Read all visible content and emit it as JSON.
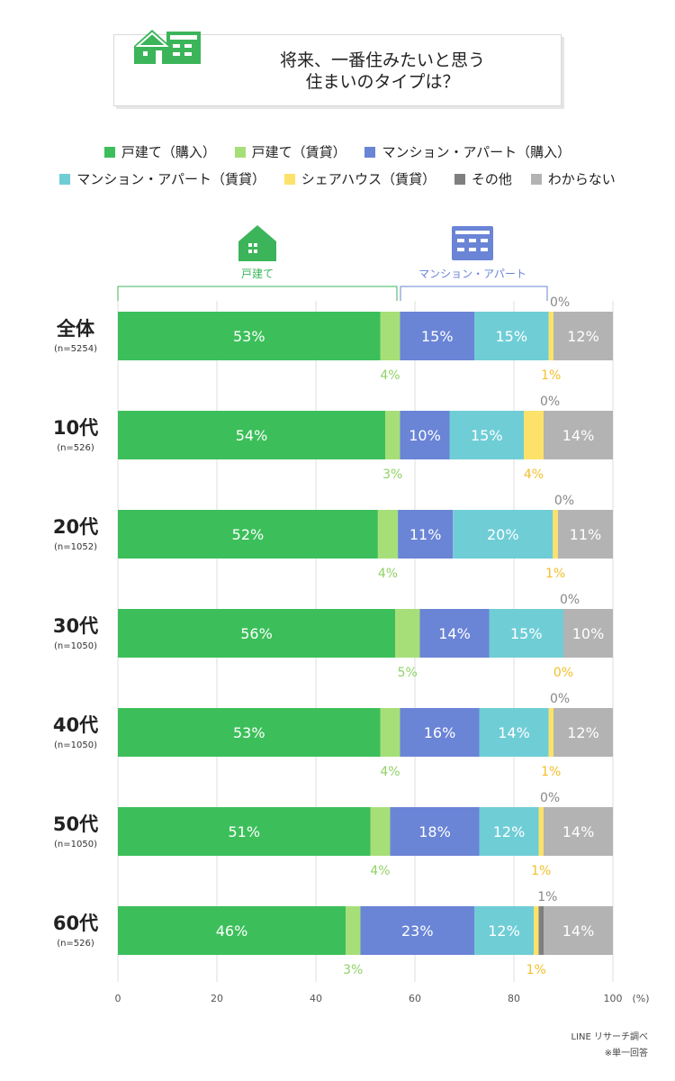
{
  "title": {
    "line1": "将来、一番住みたいと思う",
    "line2": "住まいのタイプは？"
  },
  "groups": {
    "house": "戸建て",
    "apartment": "マンション・アパート"
  },
  "icons": {
    "title": "house-and-apartment-icon",
    "house": "house-icon",
    "apartment": "apartment-icon"
  },
  "colors": {
    "house_buy": "#3cbf5a",
    "house_rent": "#a6df78",
    "apt_buy": "#6a84d6",
    "apt_rent": "#6fcdd6",
    "share": "#fce26a",
    "other": "#7f7f7f",
    "unknown": "#b3b3b3",
    "house_group": "#3cb55a",
    "apt_group": "#6a84d6",
    "small_rent_label": "#8fd267",
    "small_share_label": "#f2bf2a",
    "small_other_label": "#888888"
  },
  "chart_data": {
    "type": "bar",
    "orientation": "horizontal-stacked",
    "unit": "(%)",
    "xlim": [
      0,
      100
    ],
    "xticks": [
      "0",
      "20",
      "40",
      "60",
      "80",
      "100"
    ],
    "categories": [
      "全体",
      "10代",
      "20代",
      "30代",
      "40代",
      "50代",
      "60代"
    ],
    "sample_sizes": [
      "(n=5254)",
      "(n=526)",
      "(n=1052)",
      "(n=1050)",
      "(n=1050)",
      "(n=1050)",
      "(n=526)"
    ],
    "series": [
      {
        "name": "戸建て（購入）",
        "color_key": "house_buy",
        "values": [
          53,
          54,
          52,
          56,
          53,
          51,
          46
        ]
      },
      {
        "name": "戸建て（賃貸）",
        "color_key": "house_rent",
        "values": [
          4,
          3,
          4,
          5,
          4,
          4,
          3
        ]
      },
      {
        "name": "マンション・アパート（購入）",
        "color_key": "apt_buy",
        "values": [
          15,
          10,
          11,
          14,
          16,
          18,
          23
        ]
      },
      {
        "name": "マンション・アパート（賃貸）",
        "color_key": "apt_rent",
        "values": [
          15,
          15,
          20,
          15,
          14,
          12,
          12
        ]
      },
      {
        "name": "シェアハウス（賃貸）",
        "color_key": "share",
        "values": [
          1,
          4,
          1,
          0,
          1,
          1,
          1
        ]
      },
      {
        "name": "その他",
        "color_key": "other",
        "values": [
          0,
          0,
          0,
          0,
          0,
          0,
          1
        ]
      },
      {
        "name": "わからない",
        "color_key": "unknown",
        "values": [
          12,
          14,
          11,
          10,
          12,
          14,
          14
        ]
      }
    ]
  },
  "notes": {
    "source": "LINE リサーチ調べ",
    "answer": "※単一回答"
  }
}
